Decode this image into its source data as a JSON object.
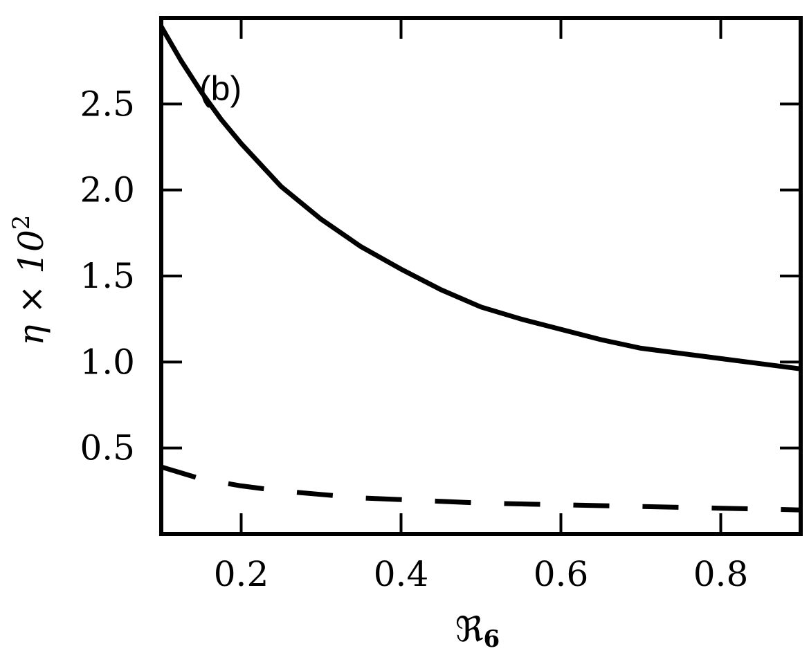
{
  "chart_data": {
    "type": "line",
    "panel_label": "(b)",
    "xlabel": "ℜ",
    "xlabel_sub": "6",
    "ylabel": "η × 10",
    "ylabel_sup": "2",
    "xlim": [
      0.1,
      0.9
    ],
    "ylim": [
      0.0,
      3.0
    ],
    "xticks": [
      0.2,
      0.4,
      0.6,
      0.8
    ],
    "xtick_labels": [
      "0.2",
      "0.4",
      "0.6",
      "0.8"
    ],
    "yticks": [
      0.5,
      1.0,
      1.5,
      2.0,
      2.5
    ],
    "ytick_labels": [
      "0.5",
      "1.0",
      "1.5",
      "2.0",
      "2.5"
    ],
    "grid": false,
    "series": [
      {
        "style": "solid",
        "color": "#000000",
        "x": [
          0.1,
          0.125,
          0.15,
          0.175,
          0.2,
          0.25,
          0.3,
          0.35,
          0.4,
          0.45,
          0.5,
          0.55,
          0.6,
          0.65,
          0.7,
          0.75,
          0.8,
          0.85,
          0.9
        ],
        "y": [
          2.95,
          2.75,
          2.57,
          2.41,
          2.27,
          2.02,
          1.83,
          1.67,
          1.54,
          1.42,
          1.32,
          1.25,
          1.19,
          1.13,
          1.08,
          1.05,
          1.02,
          0.99,
          0.96
        ]
      },
      {
        "style": "dashed",
        "color": "#000000",
        "x": [
          0.1,
          0.15,
          0.2,
          0.25,
          0.3,
          0.35,
          0.4,
          0.45,
          0.5,
          0.55,
          0.6,
          0.65,
          0.7,
          0.75,
          0.8,
          0.85,
          0.9
        ],
        "y": [
          0.39,
          0.32,
          0.28,
          0.25,
          0.23,
          0.21,
          0.2,
          0.19,
          0.18,
          0.175,
          0.17,
          0.165,
          0.16,
          0.155,
          0.15,
          0.145,
          0.14
        ]
      }
    ]
  }
}
